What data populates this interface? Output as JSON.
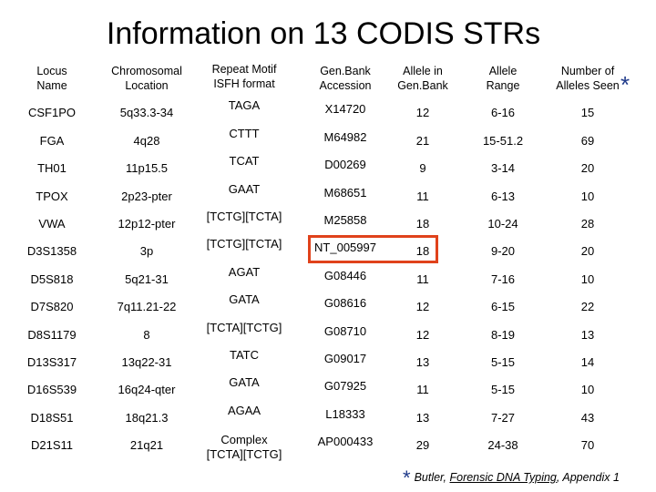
{
  "title": "Information on 13 CODIS STRs",
  "headers": [
    [
      "Locus",
      "Name"
    ],
    [
      "Chromosomal",
      "Location"
    ],
    [
      "Repeat Motif",
      "ISFH format"
    ],
    [
      "Gen.Bank",
      "Accession"
    ],
    [
      "Allele in",
      "Gen.Bank"
    ],
    [
      "Allele",
      "Range"
    ],
    [
      "Number of",
      "Alleles Seen"
    ]
  ],
  "header_star": "*",
  "rows": [
    [
      "CSF1PO",
      "5q33.3-34",
      "TAGA",
      "X14720",
      "12",
      "6-16",
      "15"
    ],
    [
      "FGA",
      "4q28",
      "CTTT",
      "M64982",
      "21",
      "15-51.2",
      "69"
    ],
    [
      "TH01",
      "11p15.5",
      "TCAT",
      "D00269",
      "9",
      "3-14",
      "20"
    ],
    [
      "TPOX",
      "2p23-pter",
      "GAAT",
      "M68651",
      "11",
      "6-13",
      "10"
    ],
    [
      "VWA",
      "12p12-pter",
      "[TCTG][TCTA]",
      "M25858",
      "18",
      "10-24",
      "28"
    ],
    [
      "D3S1358",
      "3p",
      "[TCTG][TCTA]",
      "NT_005997",
      "18",
      "9-20",
      "20"
    ],
    [
      "D5S818",
      "5q21-31",
      "AGAT",
      "G08446",
      "11",
      "7-16",
      "10"
    ],
    [
      "D7S820",
      "7q11.21-22",
      "GATA",
      "G08616",
      "12",
      "6-15",
      "22"
    ],
    [
      "D8S1179",
      "8",
      "[TCTA][TCTG]",
      "G08710",
      "12",
      "8-19",
      "13"
    ],
    [
      "D13S317",
      "13q22-31",
      "TATC",
      "G09017",
      "13",
      "5-15",
      "14"
    ],
    [
      "D16S539",
      "16q24-qter",
      "GATA",
      "G07925",
      "11",
      "5-15",
      "10"
    ],
    [
      "D18S51",
      "18q21.3",
      "AGAA",
      "L18333",
      "13",
      "7-27",
      "43"
    ],
    [
      "D21S11",
      "21q21",
      [
        "Complex",
        "[TCTA][TCTG]"
      ],
      "AP000433",
      "29",
      "24-38",
      "70"
    ]
  ],
  "footnote": {
    "star": "*",
    "author": "Butler, ",
    "book": "Forensic DNA Typing",
    "rest": ", Appendix 1"
  },
  "colors": {
    "highlight": "#e0421b",
    "star": "#1f3a8a"
  }
}
